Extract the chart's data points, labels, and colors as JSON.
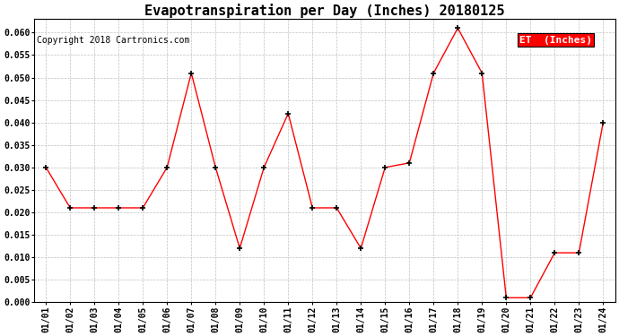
{
  "title": "Evapotranspiration per Day (Inches) 20180125",
  "copyright_text": "Copyright 2018 Cartronics.com",
  "legend_label": "ET  (Inches)",
  "x_labels": [
    "01/01",
    "01/02",
    "01/03",
    "01/04",
    "01/05",
    "01/06",
    "01/07",
    "01/08",
    "01/09",
    "01/10",
    "01/11",
    "01/12",
    "01/13",
    "01/14",
    "01/15",
    "01/16",
    "01/17",
    "01/18",
    "01/19",
    "01/20",
    "01/21",
    "01/22",
    "01/23",
    "01/24"
  ],
  "y_values": [
    0.03,
    0.021,
    0.021,
    0.021,
    0.021,
    0.03,
    0.051,
    0.03,
    0.012,
    0.03,
    0.042,
    0.021,
    0.021,
    0.012,
    0.03,
    0.031,
    0.051,
    0.061,
    0.051,
    0.001,
    0.001,
    0.011,
    0.011,
    0.04
  ],
  "line_color": "red",
  "marker_color": "black",
  "ylim": [
    0.0,
    0.063
  ],
  "yticks": [
    0.0,
    0.005,
    0.01,
    0.015,
    0.02,
    0.025,
    0.03,
    0.035,
    0.04,
    0.045,
    0.05,
    0.055,
    0.06
  ],
  "background_color": "#ffffff",
  "grid_color": "#c0c0c0",
  "title_fontsize": 11,
  "copyright_fontsize": 7,
  "legend_fontsize": 8,
  "tick_fontsize": 7,
  "legend_bg": "red",
  "legend_text_color": "white"
}
